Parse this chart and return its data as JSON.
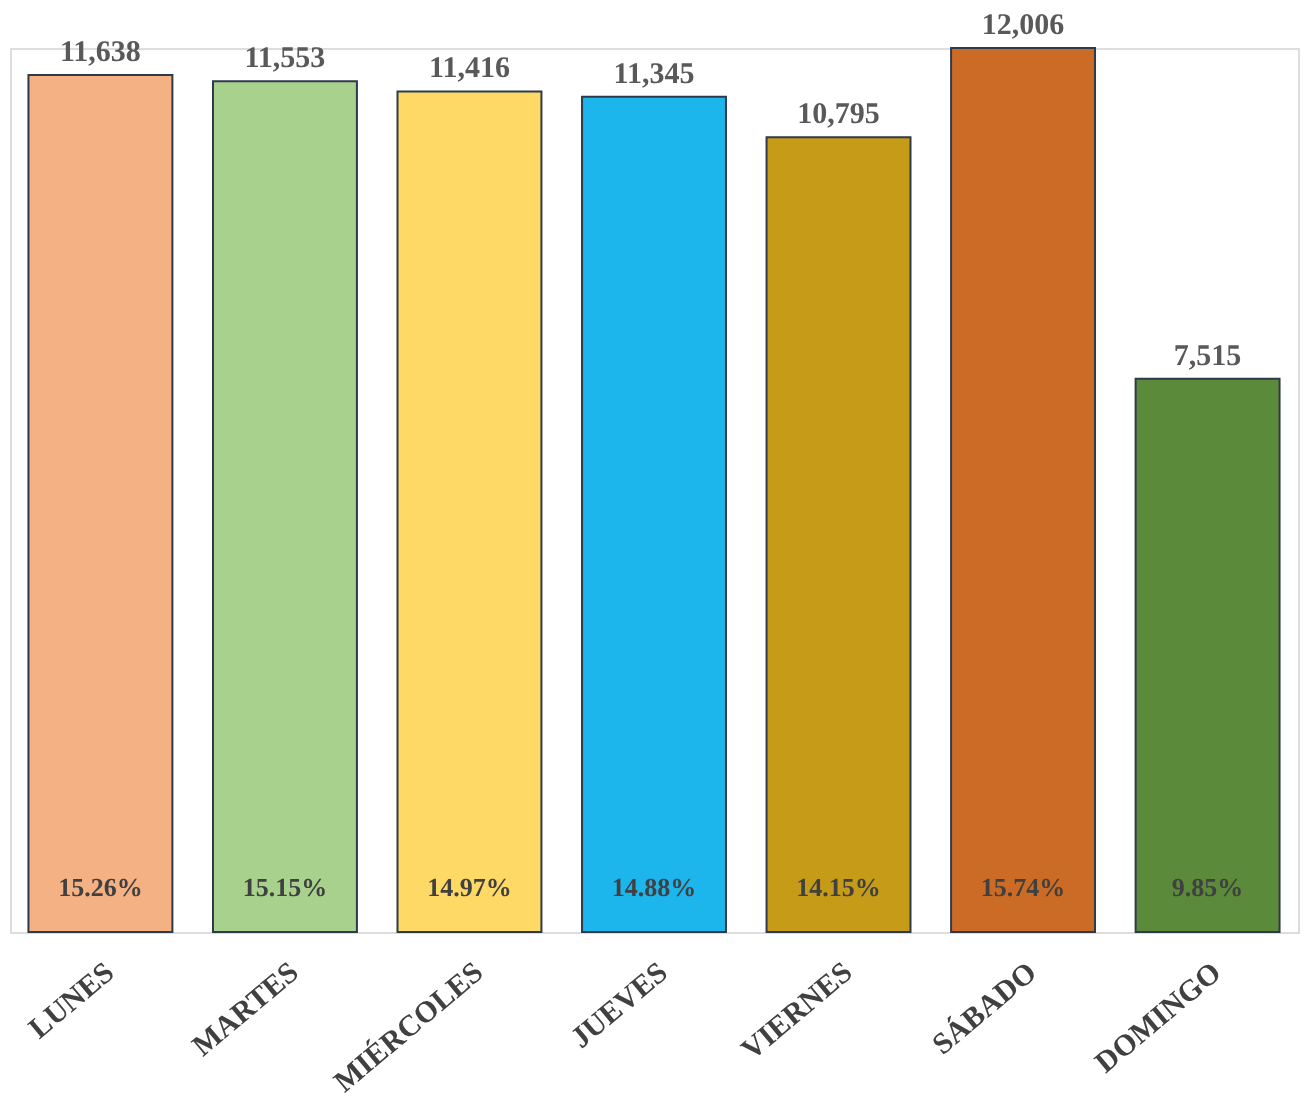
{
  "chart_data": {
    "type": "bar",
    "categories": [
      "LUNES",
      "MARTES",
      "MIÉRCOLES",
      "JUEVES",
      "VIERNES",
      "SÁBADO",
      "DOMINGO"
    ],
    "values": [
      11638,
      11553,
      11416,
      11345,
      10795,
      12006,
      7515
    ],
    "value_labels": [
      "11,638",
      "11,553",
      "11,416",
      "11,345",
      "10,795",
      "12,006",
      "7,515"
    ],
    "colors": [
      "#f4b183",
      "#a9d18e",
      "#ffd966",
      "#1cb5ec",
      "#c59b17",
      "#cc6b25",
      "#5b8a3a"
    ],
    "annotations": [
      "15.26%",
      "15.15%",
      "14.97%",
      "14.88%",
      "14.15%",
      "15.74%",
      "9.85%"
    ],
    "tick_labels": "x",
    "grid": false
  }
}
